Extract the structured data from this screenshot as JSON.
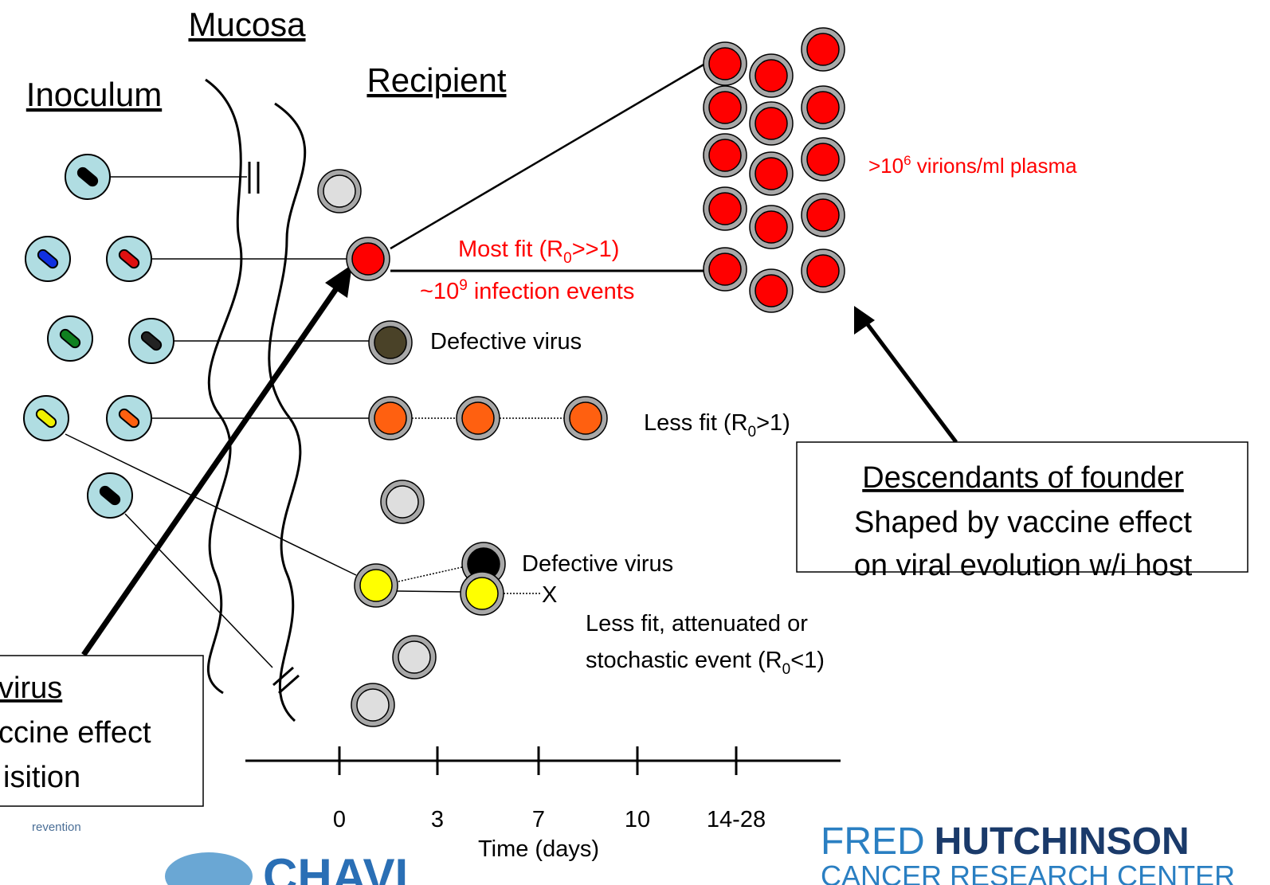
{
  "headers": {
    "mucosa": "Mucosa",
    "inoculum": "Inoculum",
    "recipient": "Recipient"
  },
  "labels": {
    "plasma": {
      "pre": ">10",
      "sup": "6",
      "post": " virions/ml plasma"
    },
    "most_fit": {
      "pre": "Most fit  (R",
      "sub": "0",
      "post": ">>1)"
    },
    "events": {
      "pre": "~10",
      "sup": "9",
      "post": " infection events"
    },
    "defective_1": "Defective virus",
    "less_fit": {
      "pre": "Less fit  (R",
      "sub": "0",
      "post": ">1)"
    },
    "defective_2": "Defective virus",
    "x_mark": "X",
    "attenuated_line1": "Less fit, attenuated or",
    "attenuated_line2": {
      "pre": "stochastic event (R",
      "sub": "0",
      "post": "<1)"
    }
  },
  "right_box": {
    "title": "Descendants of founder",
    "line1": "Shaped by vaccine effect",
    "line2": "on viral evolution w/i host"
  },
  "left_box": {
    "title": "virus",
    "line1": "ccine effect",
    "line2": "isition"
  },
  "timeline": {
    "ticks": [
      "0",
      "3",
      "7",
      "10",
      "14-28"
    ],
    "label": "Time (days)"
  },
  "logos": {
    "left": "revention",
    "chavi": "CHAVI",
    "fred": "FRED",
    "hutchinson": "HUTCHINSON",
    "cancer": "CANCER RESEARCH CENTER"
  }
}
